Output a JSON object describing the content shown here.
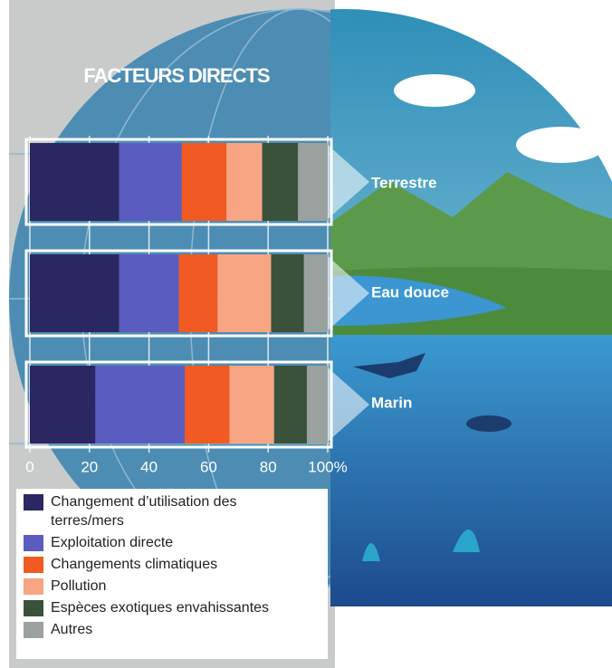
{
  "title": "FACTEURS DIRECTS",
  "chart_data": {
    "type": "stacked-bar-horizontal",
    "categories": [
      "Terrestre",
      "Eau douce",
      "Marin"
    ],
    "series": [
      {
        "name": "Changement d’utilisation des terres/mers",
        "color": "#2b2762",
        "values": [
          30,
          30,
          22
        ]
      },
      {
        "name": "Exploitation directe",
        "color": "#5b5cc0",
        "values": [
          21,
          20,
          30
        ]
      },
      {
        "name": "Changements climatiques",
        "color": "#f15a22",
        "values": [
          15,
          13,
          15
        ]
      },
      {
        "name": "Pollution",
        "color": "#f7a583",
        "values": [
          12,
          18,
          15
        ]
      },
      {
        "name": "Espèces exotiques envahissantes",
        "color": "#3a5239",
        "values": [
          12,
          11,
          11
        ]
      },
      {
        "name": "Autres",
        "color": "#9aa19f",
        "values": [
          10,
          8,
          7
        ]
      }
    ],
    "xlim": [
      0,
      100
    ],
    "xticks": [
      0,
      20,
      40,
      60,
      80,
      {
        "value": 100,
        "label": "100%"
      }
    ],
    "grid": true
  }
}
